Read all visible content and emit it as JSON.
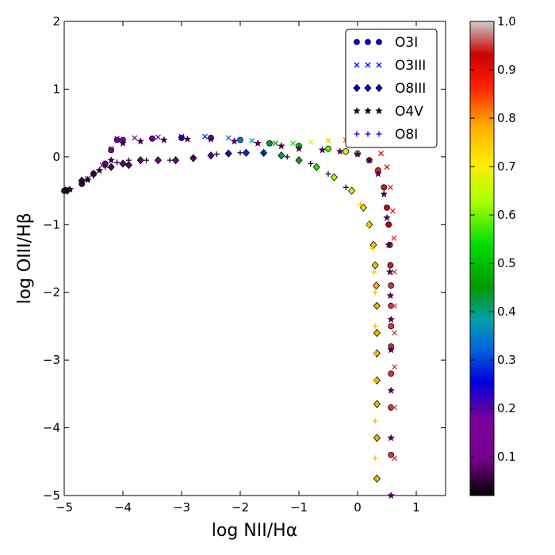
{
  "chart_data": {
    "type": "scatter",
    "title": "",
    "xlabel": "log NII/Hα",
    "ylabel": "log OIII/Hβ",
    "xlim": [
      -5,
      1.5
    ],
    "ylim": [
      -5,
      2
    ],
    "xticks": [
      -5,
      -4,
      -3,
      -2,
      -1,
      0,
      1
    ],
    "yticks": [
      -5,
      -4,
      -3,
      -2,
      -1,
      0,
      1,
      2
    ],
    "xtick_labels": [
      "−5",
      "−4",
      "−3",
      "−2",
      "−1",
      "0",
      "1"
    ],
    "ytick_labels": [
      "−5",
      "−4",
      "−3",
      "−2",
      "−1",
      "0",
      "1",
      "2"
    ],
    "grid": false,
    "legend_position": "top-right",
    "colorbar": {
      "min": 0.02,
      "max": 1.0,
      "ticks": [
        0.1,
        0.2,
        0.3,
        0.4,
        0.5,
        0.6,
        0.7,
        0.8,
        0.9,
        1.0
      ],
      "tick_labels": [
        "0.1",
        "0.2",
        "0.3",
        "0.4",
        "0.5",
        "0.6",
        "0.7",
        "0.8",
        "0.9",
        "1.0"
      ],
      "colormap": "nipy_spectral"
    },
    "series": [
      {
        "name": "O3I",
        "marker": "circle",
        "legend_color": "#0000cc",
        "points": [
          [
            -5.0,
            -0.5
          ],
          [
            -4.7,
            -0.4
          ],
          [
            -4.5,
            -0.25
          ],
          [
            -4.3,
            -0.1
          ],
          [
            -4.2,
            0.1
          ],
          [
            -4.1,
            0.25
          ],
          [
            -4.0,
            0.25
          ],
          [
            -3.5,
            0.27
          ],
          [
            -3.0,
            0.28
          ],
          [
            -2.5,
            0.28
          ],
          [
            -2.0,
            0.25
          ],
          [
            -1.5,
            0.2
          ],
          [
            -1.0,
            0.16
          ],
          [
            -0.5,
            0.12
          ],
          [
            -0.2,
            0.08
          ],
          [
            0.0,
            0.05
          ],
          [
            0.2,
            -0.05
          ],
          [
            0.35,
            -0.2
          ],
          [
            0.45,
            -0.45
          ],
          [
            0.5,
            -0.75
          ],
          [
            0.53,
            -1.0
          ],
          [
            0.55,
            -1.3
          ],
          [
            0.56,
            -1.6
          ],
          [
            0.57,
            -1.9
          ],
          [
            0.57,
            -2.2
          ],
          [
            0.57,
            -2.5
          ],
          [
            0.57,
            -2.8
          ],
          [
            0.57,
            -3.2
          ],
          [
            0.57,
            -3.7
          ],
          [
            0.57,
            -4.4
          ]
        ],
        "z": [
          0.02,
          0.03,
          0.05,
          0.08,
          0.1,
          0.12,
          0.13,
          0.17,
          0.22,
          0.28,
          0.33,
          0.42,
          0.5,
          0.58,
          0.66,
          0.74,
          0.8,
          0.86,
          0.9,
          0.92,
          0.93,
          0.94,
          0.94,
          0.95,
          0.95,
          0.95,
          0.95,
          0.95,
          0.95,
          0.95
        ]
      },
      {
        "name": "O3III",
        "marker": "x",
        "legend_color": "#0000ff",
        "points": [
          [
            -4.95,
            -0.48
          ],
          [
            -4.6,
            -0.32
          ],
          [
            -4.35,
            -0.12
          ],
          [
            -4.2,
            0.12
          ],
          [
            -4.1,
            0.27
          ],
          [
            -3.8,
            0.28
          ],
          [
            -3.4,
            0.29
          ],
          [
            -3.0,
            0.3
          ],
          [
            -2.6,
            0.3
          ],
          [
            -2.2,
            0.28
          ],
          [
            -1.8,
            0.24
          ],
          [
            -1.4,
            0.2
          ],
          [
            -1.1,
            0.2
          ],
          [
            -0.8,
            0.22
          ],
          [
            -0.5,
            0.24
          ],
          [
            -0.2,
            0.25
          ],
          [
            0.05,
            0.24
          ],
          [
            0.25,
            0.18
          ],
          [
            0.4,
            0.05
          ],
          [
            0.5,
            -0.15
          ],
          [
            0.56,
            -0.45
          ],
          [
            0.6,
            -0.8
          ],
          [
            0.62,
            -1.2
          ],
          [
            0.63,
            -1.7
          ],
          [
            0.63,
            -2.2
          ],
          [
            0.63,
            -2.6
          ],
          [
            0.63,
            -3.1
          ],
          [
            0.63,
            -3.7
          ],
          [
            0.63,
            -4.45
          ]
        ],
        "z": [
          0.02,
          0.04,
          0.07,
          0.1,
          0.12,
          0.14,
          0.18,
          0.22,
          0.27,
          0.31,
          0.37,
          0.45,
          0.55,
          0.65,
          0.75,
          0.82,
          0.87,
          0.9,
          0.92,
          0.93,
          0.94,
          0.94,
          0.95,
          0.95,
          0.95,
          0.95,
          0.95,
          0.95,
          0.95
        ]
      },
      {
        "name": "O8III",
        "marker": "diamond",
        "legend_color": "#0000cc",
        "points": [
          [
            -4.95,
            -0.5
          ],
          [
            -4.7,
            -0.35
          ],
          [
            -4.5,
            -0.25
          ],
          [
            -4.2,
            -0.15
          ],
          [
            -4.0,
            -0.1
          ],
          [
            -3.9,
            -0.12
          ],
          [
            -3.7,
            -0.05
          ],
          [
            -3.4,
            -0.05
          ],
          [
            -3.1,
            -0.05
          ],
          [
            -2.8,
            -0.02
          ],
          [
            -2.5,
            0.02
          ],
          [
            -2.2,
            0.05
          ],
          [
            -1.9,
            0.06
          ],
          [
            -1.6,
            0.06
          ],
          [
            -1.3,
            0.02
          ],
          [
            -1.0,
            -0.05
          ],
          [
            -0.7,
            -0.15
          ],
          [
            -0.4,
            -0.3
          ],
          [
            -0.1,
            -0.5
          ],
          [
            0.1,
            -0.75
          ],
          [
            0.2,
            -1.0
          ],
          [
            0.27,
            -1.3
          ],
          [
            0.3,
            -1.6
          ],
          [
            0.32,
            -1.9
          ],
          [
            0.33,
            -2.2
          ],
          [
            0.33,
            -2.6
          ],
          [
            0.33,
            -2.9
          ],
          [
            0.33,
            -3.3
          ],
          [
            0.33,
            -3.65
          ],
          [
            0.33,
            -4.15
          ],
          [
            0.33,
            -4.75
          ]
        ],
        "z": [
          0.02,
          0.03,
          0.04,
          0.05,
          0.06,
          0.06,
          0.07,
          0.09,
          0.11,
          0.14,
          0.18,
          0.22,
          0.27,
          0.32,
          0.4,
          0.46,
          0.55,
          0.62,
          0.68,
          0.72,
          0.74,
          0.75,
          0.76,
          0.77,
          0.77,
          0.77,
          0.77,
          0.77,
          0.77,
          0.77,
          0.77
        ]
      },
      {
        "name": "O4V",
        "marker": "star",
        "legend_color": "#000000",
        "points": [
          [
            -4.9,
            -0.48
          ],
          [
            -4.6,
            -0.34
          ],
          [
            -4.4,
            -0.2
          ],
          [
            -4.2,
            -0.05
          ],
          [
            -4.0,
            0.2
          ],
          [
            -3.7,
            0.23
          ],
          [
            -3.3,
            0.25
          ],
          [
            -2.9,
            0.26
          ],
          [
            -2.5,
            0.26
          ],
          [
            -2.1,
            0.23
          ],
          [
            -1.7,
            0.2
          ],
          [
            -1.3,
            0.16
          ],
          [
            -1.0,
            0.12
          ],
          [
            -0.6,
            0.1
          ],
          [
            -0.3,
            0.08
          ],
          [
            0.0,
            0.04
          ],
          [
            0.2,
            -0.05
          ],
          [
            0.35,
            -0.25
          ],
          [
            0.45,
            -0.55
          ],
          [
            0.5,
            -0.9
          ],
          [
            0.53,
            -1.3
          ],
          [
            0.55,
            -1.7
          ],
          [
            0.56,
            -2.05
          ],
          [
            0.57,
            -2.4
          ],
          [
            0.57,
            -2.85
          ],
          [
            0.57,
            -3.45
          ],
          [
            0.57,
            -4.15
          ],
          [
            0.57,
            -5.0
          ]
        ],
        "z": [
          0.02,
          0.02,
          0.03,
          0.03,
          0.04,
          0.04,
          0.04,
          0.05,
          0.05,
          0.05,
          0.05,
          0.05,
          0.05,
          0.05,
          0.05,
          0.05,
          0.05,
          0.05,
          0.05,
          0.05,
          0.05,
          0.05,
          0.05,
          0.05,
          0.05,
          0.05,
          0.05,
          0.05
        ]
      },
      {
        "name": "O8I",
        "marker": "plus",
        "legend_color": "#0000ff",
        "points": [
          [
            -5.0,
            -0.5
          ],
          [
            -4.7,
            -0.38
          ],
          [
            -4.5,
            -0.28
          ],
          [
            -4.3,
            -0.15
          ],
          [
            -4.1,
            -0.08
          ],
          [
            -3.9,
            -0.05
          ],
          [
            -3.6,
            -0.05
          ],
          [
            -3.2,
            -0.05
          ],
          [
            -2.8,
            0.0
          ],
          [
            -2.4,
            0.04
          ],
          [
            -2.0,
            0.06
          ],
          [
            -1.6,
            0.05
          ],
          [
            -1.2,
            0.0
          ],
          [
            -0.8,
            -0.1
          ],
          [
            -0.5,
            -0.25
          ],
          [
            -0.2,
            -0.45
          ],
          [
            0.05,
            -0.7
          ],
          [
            0.18,
            -1.0
          ],
          [
            0.25,
            -1.35
          ],
          [
            0.28,
            -1.7
          ],
          [
            0.3,
            -2.0
          ],
          [
            0.3,
            -2.5
          ],
          [
            0.3,
            -2.9
          ],
          [
            0.3,
            -3.3
          ],
          [
            0.3,
            -3.9
          ],
          [
            0.3,
            -4.45
          ]
        ],
        "z": [
          0.02,
          0.02,
          0.02,
          0.02,
          0.02,
          0.02,
          0.02,
          0.02,
          0.02,
          0.02,
          0.02,
          0.02,
          0.02,
          0.02,
          0.02,
          0.02,
          0.76,
          0.76,
          0.76,
          0.76,
          0.76,
          0.76,
          0.76,
          0.76,
          0.76,
          0.76
        ]
      }
    ]
  }
}
